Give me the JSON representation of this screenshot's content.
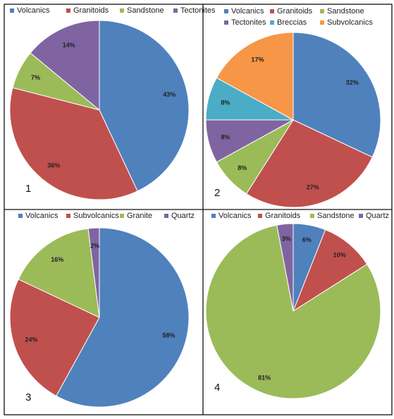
{
  "chart_data": [
    {
      "type": "pie",
      "panel_label": "1",
      "series": [
        {
          "labels": [
            "Volcanics",
            "Granitoids",
            "Sandstone",
            "Tectonites"
          ],
          "values": [
            43,
            36,
            7,
            14
          ],
          "value_labels": [
            "43%",
            "36%",
            "7%",
            "14%"
          ],
          "colors": [
            "#4f81bd",
            "#c0504d",
            "#9bbb59",
            "#8064a2"
          ]
        }
      ],
      "legend": {
        "placement": "top",
        "entries": [
          "Volcanics",
          "Granitoids",
          "Sandstone",
          "Tectonites"
        ]
      }
    },
    {
      "type": "pie",
      "panel_label": "2",
      "series": [
        {
          "labels": [
            "Volcanics",
            "Granitoids",
            "Sandstone",
            "Tectonites",
            "Breccias",
            "Subvolcanics"
          ],
          "values": [
            32,
            27,
            8,
            8,
            8,
            17
          ],
          "value_labels": [
            "32%",
            "27%",
            "8%",
            "8%",
            "8%",
            "17%"
          ],
          "colors": [
            "#4f81bd",
            "#c0504d",
            "#9bbb59",
            "#8064a2",
            "#4bacc6",
            "#f79646"
          ]
        }
      ],
      "legend": {
        "placement": "top",
        "entries": [
          "Volcanics",
          "Granitoids",
          "Sandstone",
          "Tectonites",
          "Breccias",
          "Subvolcanics"
        ]
      }
    },
    {
      "type": "pie",
      "panel_label": "3",
      "series": [
        {
          "labels": [
            "Volcanics",
            "Subvolcanics",
            "Granite",
            "Quartz"
          ],
          "values": [
            58,
            24,
            16,
            2
          ],
          "value_labels": [
            "58%",
            "24%",
            "16%",
            "2%"
          ],
          "colors": [
            "#4f81bd",
            "#c0504d",
            "#9bbb59",
            "#8064a2"
          ]
        }
      ],
      "legend": {
        "placement": "top",
        "entries": [
          "Volcanics",
          "Subvolcanics",
          "Granite",
          "Quartz"
        ]
      }
    },
    {
      "type": "pie",
      "panel_label": "4",
      "series": [
        {
          "labels": [
            "Volcanics",
            "Granitoids",
            "Sandstone",
            "Quartz"
          ],
          "values": [
            6,
            10,
            81,
            3
          ],
          "value_labels": [
            "6%",
            "10%",
            "81%",
            "3%"
          ],
          "colors": [
            "#4f81bd",
            "#c0504d",
            "#9bbb59",
            "#8064a2"
          ]
        }
      ],
      "legend": {
        "placement": "top",
        "entries": [
          "Volcanics",
          "Granitoids",
          "Sandstone",
          "Quartz"
        ]
      }
    }
  ]
}
